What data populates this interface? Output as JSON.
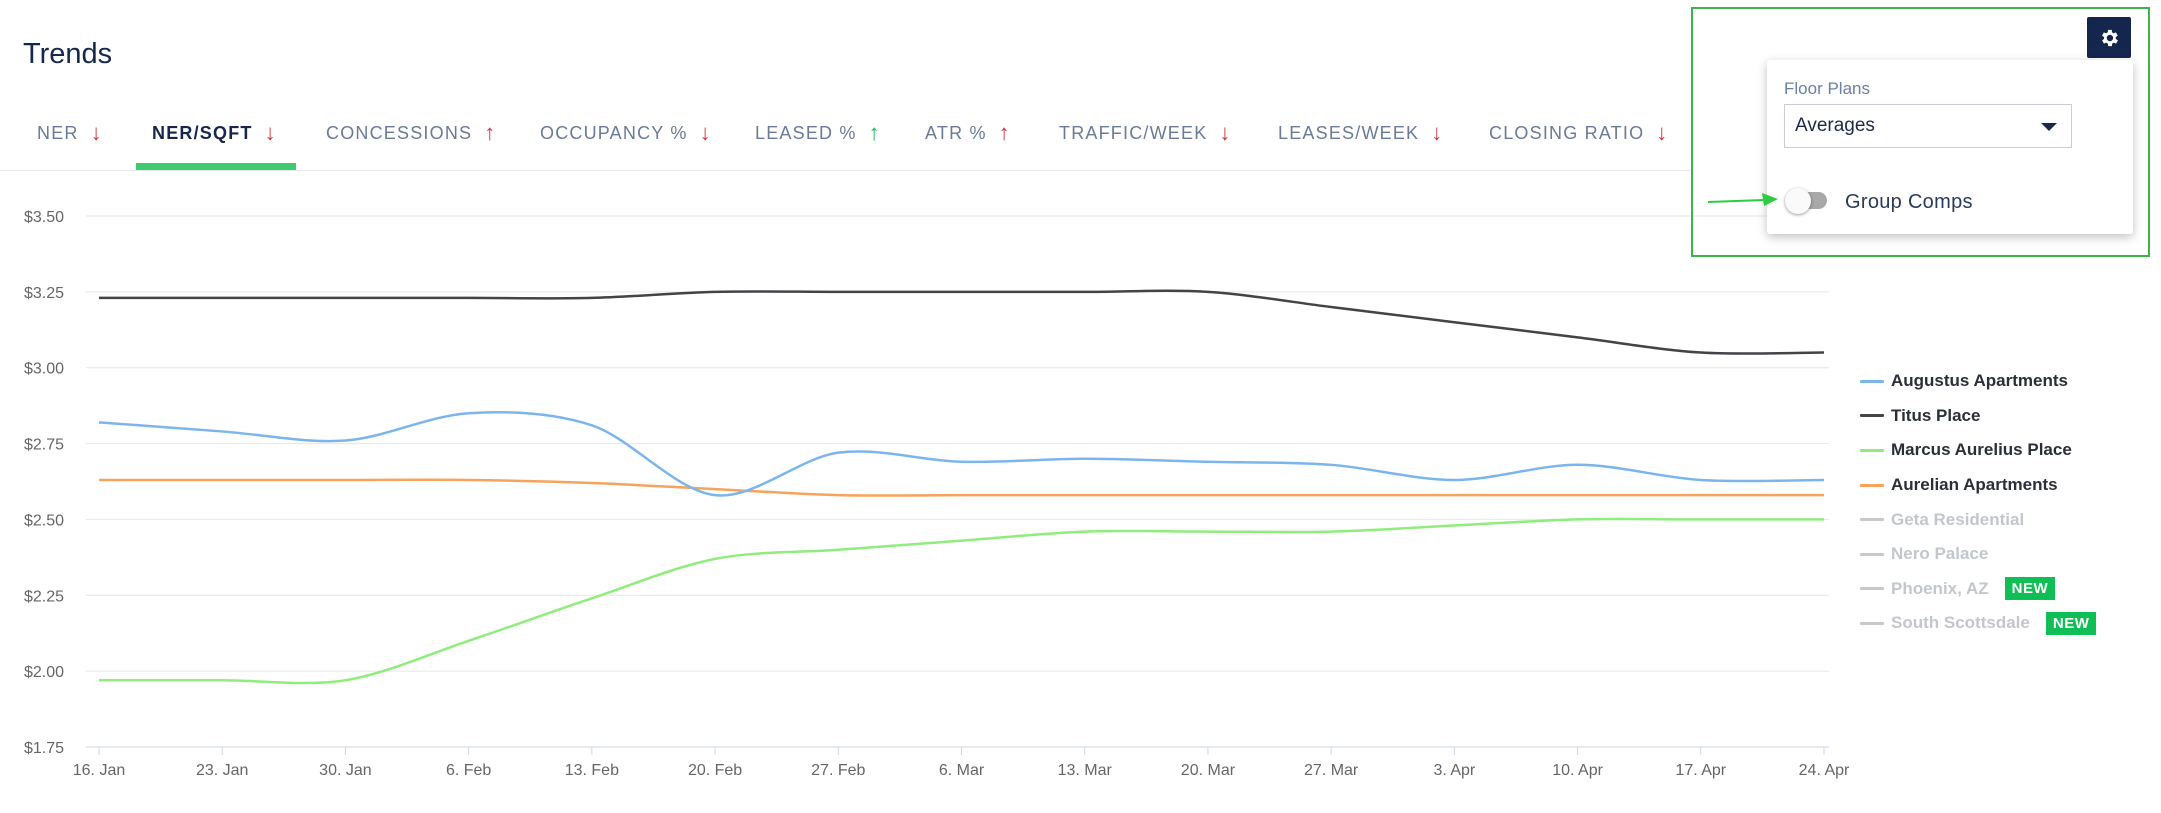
{
  "page": {
    "title": "Trends"
  },
  "tabs": [
    {
      "label": "NER",
      "trend": "down"
    },
    {
      "label": "NER/SQFT",
      "trend": "down",
      "active": true
    },
    {
      "label": "CONCESSIONS",
      "trend": "up"
    },
    {
      "label": "OCCUPANCY %",
      "trend": "down"
    },
    {
      "label": "LEASED %",
      "trend": "up-green"
    },
    {
      "label": "ATR %",
      "trend": "up"
    },
    {
      "label": "TRAFFIC/WEEK",
      "trend": "down"
    },
    {
      "label": "LEASES/WEEK",
      "trend": "down"
    },
    {
      "label": "CLOSING RATIO",
      "trend": "down"
    }
  ],
  "settings": {
    "icon": "gear-icon",
    "floor_plans_label": "Floor Plans",
    "floor_plans_value": "Averages",
    "group_comps_label": "Group Comps",
    "group_comps_on": false
  },
  "colors": {
    "accent_green": "#3dcb6e",
    "trend_down": "#d6343a",
    "trend_up_green": "#17b35a",
    "header_navy": "#14264d",
    "badge_green": "#0fbf55"
  },
  "legend": [
    {
      "name": "Augustus Apartments",
      "color": "#7cb5ec",
      "visible": true
    },
    {
      "name": "Titus Place",
      "color": "#434348",
      "visible": true
    },
    {
      "name": "Marcus Aurelius Place",
      "color": "#90ed7d",
      "visible": true
    },
    {
      "name": "Aurelian Apartments",
      "color": "#f7a35c",
      "visible": true
    },
    {
      "name": "Geta Residential",
      "color": "#c8c8c8",
      "visible": false
    },
    {
      "name": "Nero Palace",
      "color": "#c8c8c8",
      "visible": false
    },
    {
      "name": "Phoenix, AZ",
      "color": "#c8c8c8",
      "visible": false,
      "badge": "NEW"
    },
    {
      "name": "South Scottsdale",
      "color": "#c8c8c8",
      "visible": false,
      "badge": "NEW"
    }
  ],
  "chart_data": {
    "type": "line",
    "categories": [
      "16. Jan",
      "23. Jan",
      "30. Jan",
      "6. Feb",
      "13. Feb",
      "20. Feb",
      "27. Feb",
      "6. Mar",
      "13. Mar",
      "20. Mar",
      "27. Mar",
      "3. Apr",
      "10. Apr",
      "17. Apr",
      "24. Apr"
    ],
    "y_ticks": [
      "$3.50",
      "$3.25",
      "$3.00",
      "$2.75",
      "$2.50",
      "$2.25",
      "$2.00",
      "$1.75"
    ],
    "ylim": [
      1.75,
      3.5
    ],
    "grid": true,
    "legend_position": "right",
    "series": [
      {
        "name": "Augustus Apartments",
        "color": "#7cb5ec",
        "values": [
          2.82,
          2.79,
          2.76,
          2.85,
          2.81,
          2.58,
          2.72,
          2.69,
          2.7,
          2.69,
          2.68,
          2.63,
          2.68,
          2.63,
          2.63
        ]
      },
      {
        "name": "Titus Place",
        "color": "#434348",
        "values": [
          3.23,
          3.23,
          3.23,
          3.23,
          3.23,
          3.25,
          3.25,
          3.25,
          3.25,
          3.25,
          3.2,
          3.15,
          3.1,
          3.05,
          3.05
        ]
      },
      {
        "name": "Marcus Aurelius Place",
        "color": "#90ed7d",
        "values": [
          1.97,
          1.97,
          1.97,
          2.1,
          2.24,
          2.37,
          2.4,
          2.43,
          2.46,
          2.46,
          2.46,
          2.48,
          2.5,
          2.5,
          2.5
        ]
      },
      {
        "name": "Aurelian Apartments",
        "color": "#f7a35c",
        "values": [
          2.63,
          2.63,
          2.63,
          2.63,
          2.62,
          2.6,
          2.58,
          2.58,
          2.58,
          2.58,
          2.58,
          2.58,
          2.58,
          2.58,
          2.58
        ]
      }
    ]
  }
}
